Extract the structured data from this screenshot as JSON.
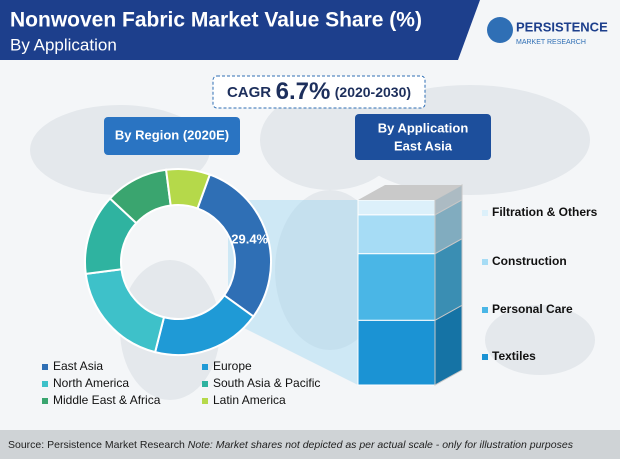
{
  "header": {
    "title": "Nonwoven Fabric Market Value Share (%)",
    "subtitle": "By Application",
    "logo": [
      "PERSISTENCE",
      "MARKET RESEARCH"
    ]
  },
  "cagr": {
    "label": "CAGR",
    "value": "6.7%",
    "period": "(2020-2030)"
  },
  "chart_data": [
    {
      "type": "pie",
      "title": "By Region (2020E)",
      "categories": [
        "East Asia",
        "Europe",
        "North America",
        "South Asia & Pacific",
        "Middle East & Africa",
        "Latin America"
      ],
      "values": [
        29.4,
        19,
        19,
        14,
        11,
        7.6
      ],
      "value_labels": [
        "29.4%",
        null,
        null,
        null,
        null,
        null
      ],
      "colors": [
        "#2f6fb5",
        "#1f9ad6",
        "#3ec1c9",
        "#2fb3a0",
        "#3aa56f",
        "#b5d94a"
      ]
    },
    {
      "type": "stacked-bar",
      "title": "By Application",
      "subtitle": "East Asia",
      "series": [
        {
          "name": "Textiles",
          "color": "#1b93d4",
          "values": [
            35
          ]
        },
        {
          "name": "Personal Care",
          "color": "#4ab6e6",
          "values": [
            36
          ]
        },
        {
          "name": "Construction",
          "color": "#a6dcf5",
          "values": [
            21
          ]
        },
        {
          "name": "Filtration & Others",
          "color": "#dcf0fa",
          "values": [
            8
          ]
        }
      ],
      "ylim": [
        0,
        100
      ]
    }
  ],
  "footer": {
    "source": "Source: Persistence Market Research",
    "note": "Note: Market shares not depicted as per actual scale - only for illustration purposes"
  }
}
